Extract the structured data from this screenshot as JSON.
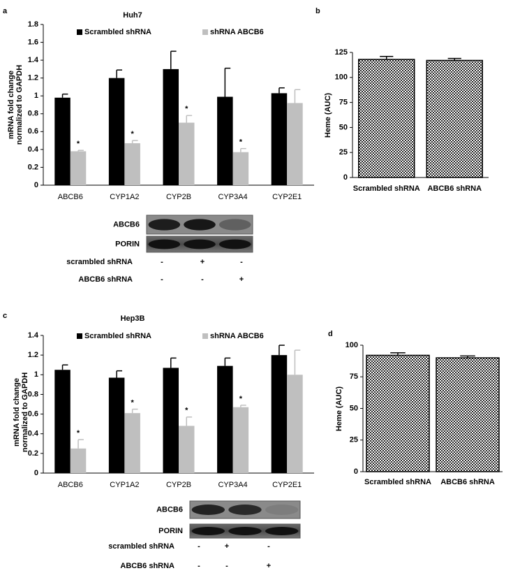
{
  "chart_data": [
    {
      "type": "bar",
      "panel": "a",
      "title": "Huh7",
      "ylabel": [
        "mRNA fold change",
        "normalized to GAPDH"
      ],
      "categories": [
        "ABCB6",
        "CYP1A2",
        "CYP2B",
        "CYP3A4",
        "CYP2E1"
      ],
      "series": [
        {
          "name": "Scrambled shRNA",
          "color": "#000000",
          "values": [
            0.98,
            1.2,
            1.3,
            0.99,
            1.03
          ],
          "errors": [
            0.04,
            0.09,
            0.2,
            0.32,
            0.06
          ]
        },
        {
          "name": "shRNA ABCB6",
          "color": "#bfbfbf",
          "values": [
            0.38,
            0.47,
            0.7,
            0.37,
            0.92
          ],
          "errors": [
            0.01,
            0.03,
            0.08,
            0.04,
            0.15
          ],
          "significance": [
            "*",
            "*",
            "*",
            "*",
            null
          ]
        }
      ],
      "ylim": [
        0,
        1.8
      ],
      "yticks": [
        0,
        0.2,
        0.4,
        0.6,
        0.8,
        1,
        1.2,
        1.4,
        1.6,
        1.8
      ]
    },
    {
      "type": "bar",
      "panel": "b",
      "ylabel": [
        "Heme (AUC)"
      ],
      "categories": [
        "Scrambled shRNA",
        "ABCB6 shRNA"
      ],
      "values": [
        118,
        117
      ],
      "errors": [
        3,
        2
      ],
      "color": "#000000",
      "pattern": "checker",
      "ylim": [
        0,
        125
      ],
      "yticks": [
        0,
        25,
        50,
        75,
        100,
        125
      ]
    },
    {
      "type": "bar",
      "panel": "c",
      "title": "Hep3B",
      "ylabel": [
        "mRNA fold change",
        "normalized to GAPDH"
      ],
      "categories": [
        "ABCB6",
        "CYP1A2",
        "CYP2B",
        "CYP3A4",
        "CYP2E1"
      ],
      "series": [
        {
          "name": "Scrambled shRNA",
          "color": "#000000",
          "values": [
            1.05,
            0.97,
            1.07,
            1.09,
            1.2
          ],
          "errors": [
            0.05,
            0.07,
            0.1,
            0.08,
            0.1
          ]
        },
        {
          "name": "shRNA ABCB6",
          "color": "#bfbfbf",
          "values": [
            0.25,
            0.61,
            0.48,
            0.67,
            1.0
          ],
          "errors": [
            0.09,
            0.04,
            0.09,
            0.02,
            0.25
          ],
          "significance": [
            "*",
            "*",
            "*",
            "*",
            null
          ]
        }
      ],
      "ylim": [
        0,
        1.4
      ],
      "yticks": [
        0,
        0.2,
        0.4,
        0.6,
        0.8,
        1,
        1.2,
        1.4
      ]
    },
    {
      "type": "bar",
      "panel": "d",
      "ylabel": [
        "Heme (AUC)"
      ],
      "categories": [
        "Scrambled shRNA",
        "ABCB6 shRNA"
      ],
      "values": [
        92,
        90
      ],
      "errors": [
        2,
        1.5
      ],
      "color": "#000000",
      "pattern": "checker",
      "ylim": [
        0,
        100
      ],
      "yticks": [
        0,
        25,
        50,
        75,
        100
      ]
    }
  ],
  "blots": [
    {
      "bands": [
        "ABCB6",
        "PORIN"
      ],
      "conditions": [
        {
          "label": "scrambled shRNA",
          "signs": [
            "-",
            "+",
            "-"
          ]
        },
        {
          "label": "ABCB6 shRNA",
          "signs": [
            "-",
            "-",
            "+"
          ]
        }
      ]
    },
    {
      "bands": [
        "ABCB6",
        "PORIN"
      ],
      "conditions": [
        {
          "label": "scrambled shRNA",
          "signs": [
            "-",
            "+",
            "-"
          ]
        },
        {
          "label": "ABCB6 shRNA",
          "signs": [
            "-",
            "-",
            "+"
          ]
        }
      ]
    }
  ]
}
